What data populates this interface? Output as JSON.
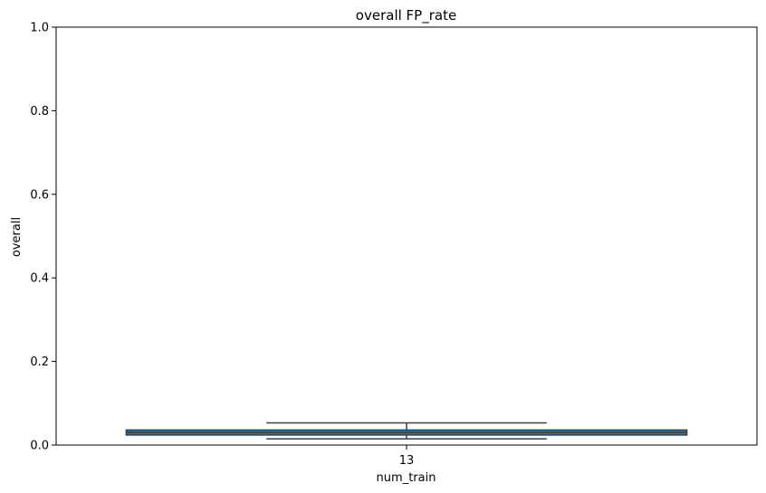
{
  "chart_data": {
    "type": "box",
    "title": "overall FP_rate",
    "xlabel": "num_train",
    "ylabel": "overall",
    "ylim": [
      0,
      1
    ],
    "yticks": [
      0.0,
      0.2,
      0.4,
      0.6,
      0.8,
      1.0
    ],
    "ytick_labels": [
      "0.0",
      "0.2",
      "0.4",
      "0.6",
      "0.8",
      "1.0"
    ],
    "categories": [
      "13"
    ],
    "boxes": [
      {
        "category": "13",
        "whisker_low": 0.015,
        "q1": 0.024,
        "median": 0.03,
        "q3": 0.036,
        "whisker_high": 0.053
      }
    ],
    "box_color": "#1f77b4",
    "line_color": "#3f3f3f",
    "grid": false
  }
}
